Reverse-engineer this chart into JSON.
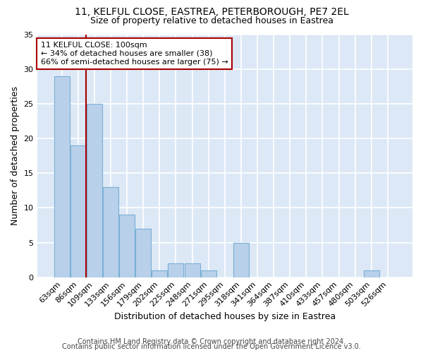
{
  "title1": "11, KELFUL CLOSE, EASTREA, PETERBOROUGH, PE7 2EL",
  "title2": "Size of property relative to detached houses in Eastrea",
  "xlabel": "Distribution of detached houses by size in Eastrea",
  "ylabel": "Number of detached properties",
  "categories": [
    "63sqm",
    "86sqm",
    "109sqm",
    "133sqm",
    "156sqm",
    "179sqm",
    "202sqm",
    "225sqm",
    "248sqm",
    "271sqm",
    "295sqm",
    "318sqm",
    "341sqm",
    "364sqm",
    "387sqm",
    "410sqm",
    "433sqm",
    "457sqm",
    "480sqm",
    "503sqm",
    "526sqm"
  ],
  "values": [
    29,
    19,
    25,
    13,
    9,
    7,
    1,
    2,
    2,
    1,
    0,
    5,
    0,
    0,
    0,
    0,
    0,
    0,
    0,
    1,
    0
  ],
  "bar_color": "#b8d0ea",
  "bar_edge_color": "#7aafd4",
  "background_color": "#dce8f5",
  "grid_color": "#ffffff",
  "red_line_x": 1.5,
  "annotation_text": "11 KELFUL CLOSE: 100sqm\n← 34% of detached houses are smaller (38)\n66% of semi-detached houses are larger (75) →",
  "annotation_box_color": "#ffffff",
  "annotation_box_edge": "#aa0000",
  "red_line_color": "#aa0000",
  "ylim": [
    0,
    35
  ],
  "yticks": [
    0,
    5,
    10,
    15,
    20,
    25,
    30,
    35
  ],
  "footer_line1": "Contains HM Land Registry data © Crown copyright and database right 2024.",
  "footer_line2": "Contains public sector information licensed under the Open Government Licence v3.0.",
  "title_fontsize": 10,
  "subtitle_fontsize": 9,
  "axis_fontsize": 9,
  "tick_fontsize": 8,
  "footer_fontsize": 7
}
